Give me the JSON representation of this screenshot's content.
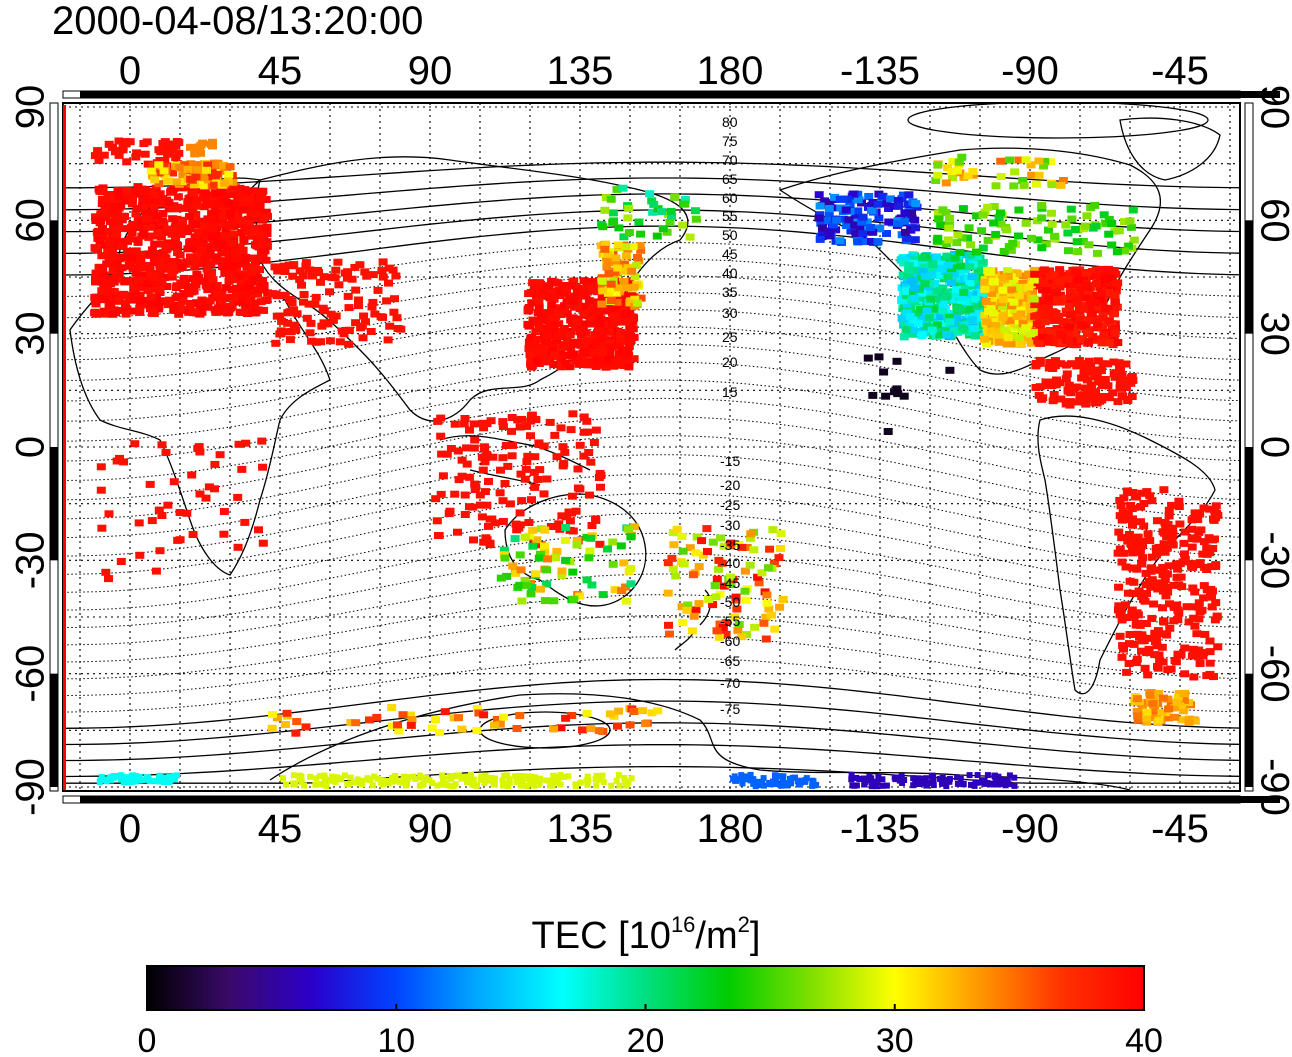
{
  "title": "2000-04-08/13:20:00",
  "top_lon_ticks": [
    "0",
    "45",
    "90",
    "135",
    "180",
    "-135",
    "-90",
    "-45"
  ],
  "bottom_lon_ticks": [
    "0",
    "45",
    "90",
    "135",
    "180",
    "-135",
    "-90",
    "-45"
  ],
  "lat_ticks": [
    "90",
    "60",
    "30",
    "0",
    "-30",
    "-60",
    "-90"
  ],
  "contour_labels_north": [
    "80",
    "75",
    "70",
    "65",
    "60",
    "55",
    "50",
    "45",
    "40",
    "35",
    "30",
    "25",
    "20",
    "15"
  ],
  "contour_labels_south": [
    "-15",
    "-20",
    "-25",
    "-30",
    "-35",
    "-40",
    "-45",
    "-50",
    "-55",
    "-60",
    "-65",
    "-70",
    "-75"
  ],
  "colorbar": {
    "label_main": "TEC  [10",
    "label_sup1": "16",
    "label_mid": "/m",
    "label_sup2": "2",
    "label_end": "]",
    "ticks": [
      "0",
      "10",
      "20",
      "30",
      "40"
    ],
    "range": [
      0,
      40
    ],
    "colors": [
      "#000000",
      "#3a0a6a",
      "#2a00cc",
      "#0044ff",
      "#00aaff",
      "#00ffff",
      "#00e080",
      "#00cc00",
      "#80e000",
      "#ffff00",
      "#ff9900",
      "#ff3300",
      "#ff0000"
    ]
  },
  "chart_data": {
    "type": "heatmap",
    "title": "2000-04-08/13:20:00",
    "x_axis": "geographic longitude",
    "y_axis": "geographic latitude",
    "xlim": [
      -20,
      337
    ],
    "ylim": [
      -90,
      90
    ],
    "clim": [
      0,
      40
    ],
    "grid": true,
    "regions": [
      {
        "lon": [
          -15,
          35
        ],
        "lat": [
          35,
          70
        ],
        "tec": 40
      },
      {
        "lon": [
          120,
          150
        ],
        "lat": [
          20,
          45
        ],
        "tec": 40
      },
      {
        "lon": [
          230,
          250
        ],
        "lat": [
          30,
          50
        ],
        "tec": 18
      },
      {
        "lon": [
          265,
          295
        ],
        "lat": [
          25,
          45
        ],
        "tec": 40
      },
      {
        "lon": [
          300,
          320
        ],
        "lat": [
          -55,
          -15
        ],
        "tec": 40
      },
      {
        "lon": [
          200,
          230
        ],
        "lat": [
          50,
          65
        ],
        "tec": 8
      },
      {
        "lon": [
          205,
          245
        ],
        "lat": [
          -88,
          -85
        ],
        "tec": 5
      }
    ]
  }
}
